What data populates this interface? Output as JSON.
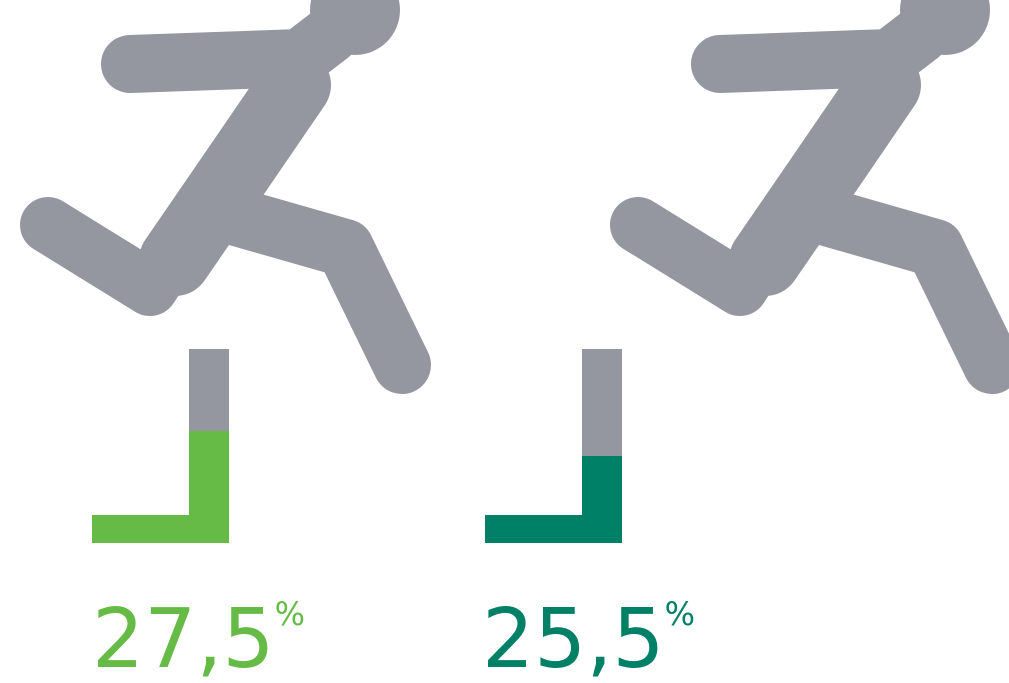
{
  "items": [
    {
      "value": "27,5",
      "unit": "%"
    },
    {
      "value": "25,5",
      "unit": "%"
    }
  ]
}
